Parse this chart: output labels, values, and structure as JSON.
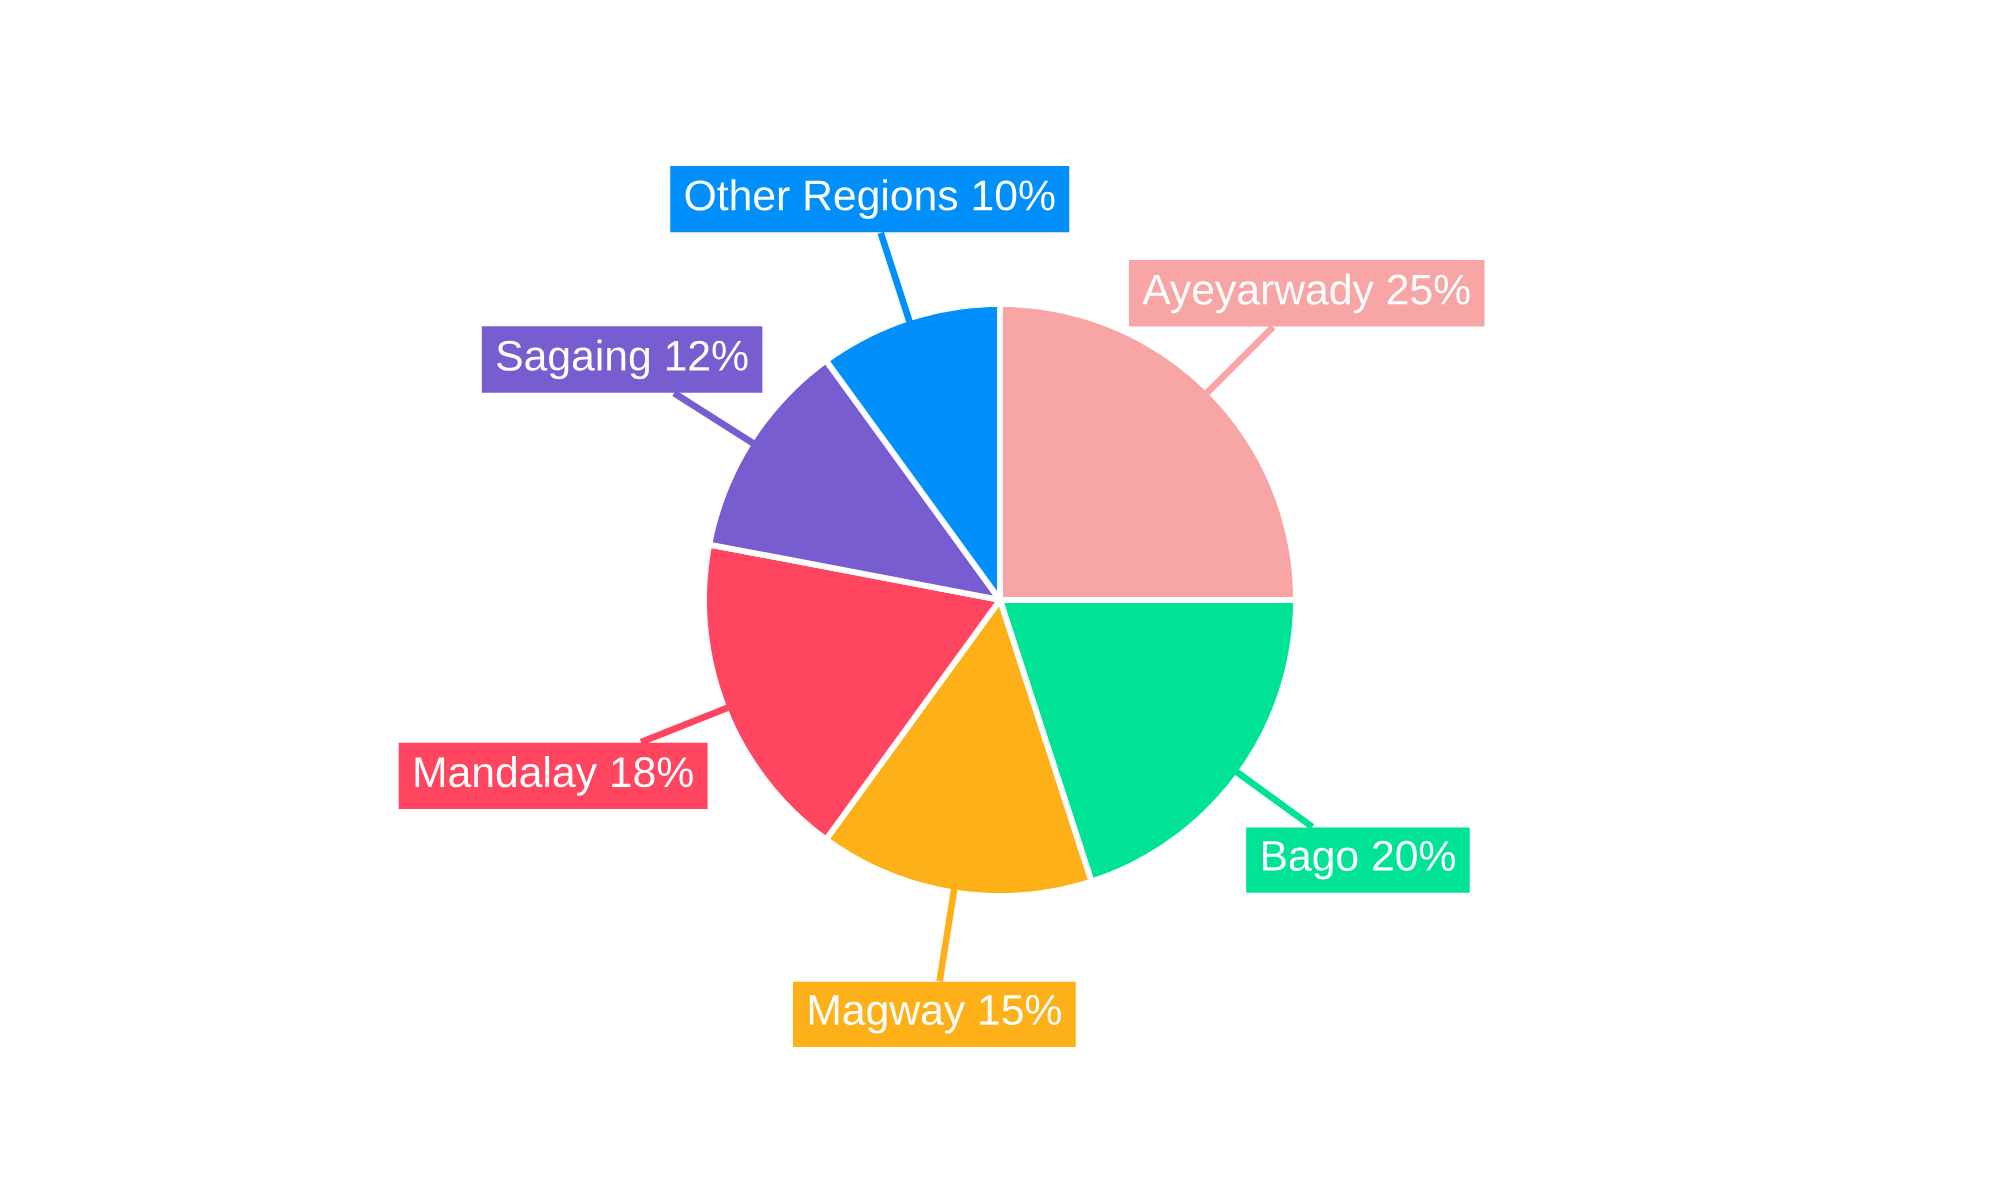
{
  "chart_data": {
    "type": "pie",
    "categories": [
      "Ayeyarwady",
      "Bago",
      "Magway",
      "Mandalay",
      "Sagaing",
      "Other Regions"
    ],
    "values": [
      25,
      20,
      15,
      18,
      12,
      10
    ],
    "value_labels": [
      "25%",
      "20%",
      "15%",
      "18%",
      "12%",
      "10%"
    ],
    "colors": [
      "#f8a5a5",
      "#00e396",
      "#feb019",
      "#ff4560",
      "#775dd0",
      "#008ffb"
    ]
  }
}
